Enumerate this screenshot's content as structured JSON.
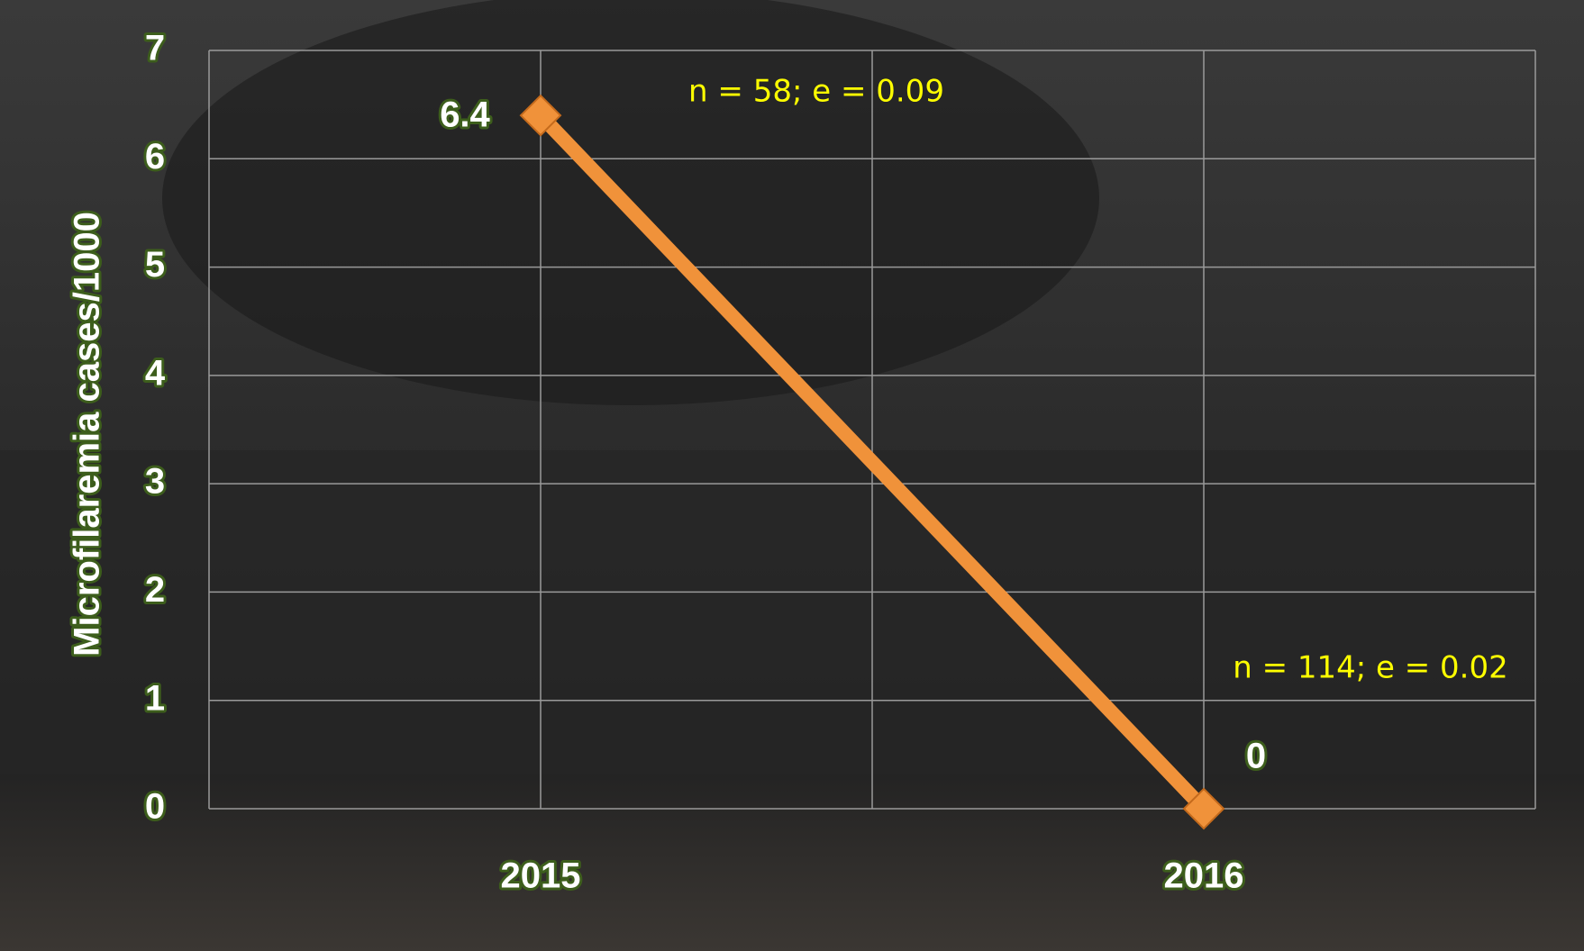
{
  "chart_data": {
    "type": "line",
    "y_label": "Microfilaremia cases/1000",
    "categories": [
      "2015",
      "2016"
    ],
    "values": [
      6.4,
      0
    ],
    "color": "#f0923a",
    "ylim": [
      0,
      7
    ],
    "yticks": [
      0,
      1,
      2,
      3,
      4,
      5,
      6,
      7
    ],
    "grid": true,
    "annotations": [
      "n = 58; e = 0.09",
      "n = 114; e = 0.02"
    ]
  }
}
